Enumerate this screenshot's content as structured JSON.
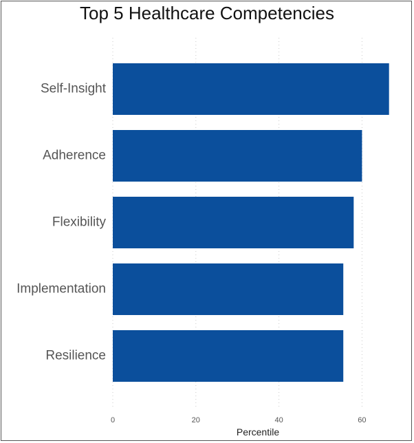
{
  "chart_data": {
    "type": "bar",
    "orientation": "horizontal",
    "title": "Top 5 Healthcare Competencies",
    "xlabel": "Percentile",
    "ylabel": "",
    "categories": [
      "Self-Insight",
      "Adherence",
      "Flexibility",
      "Implementation",
      "Resilience"
    ],
    "values": [
      66.5,
      60,
      58,
      55.5,
      55.5
    ],
    "xlim": [
      0,
      72
    ],
    "xticks": [
      0,
      20,
      40,
      60
    ],
    "grid": "vertical dotted",
    "legend": "none",
    "bar_color": "#0b4f9c"
  }
}
